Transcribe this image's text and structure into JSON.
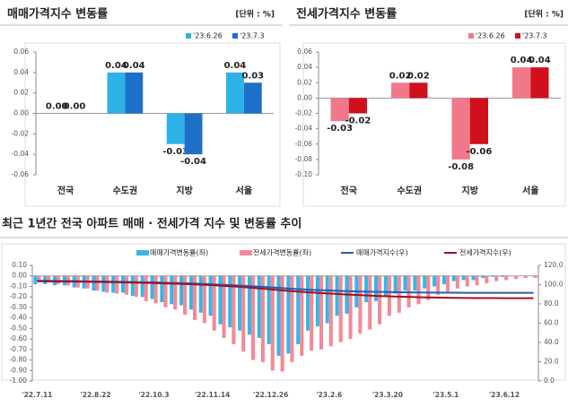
{
  "chart_data": [
    {
      "type": "bar",
      "title": "매매가격지수 변동률",
      "unit": "[단위 : %]",
      "categories": [
        "전국",
        "수도권",
        "지방",
        "서울"
      ],
      "series": [
        {
          "name": "'23.6.26",
          "color": "#2bb3e8",
          "values": [
            0,
            0.04,
            -0.03,
            0.04
          ],
          "value_labels": [
            "0.00",
            "0.04",
            "-0.03",
            "0.04"
          ]
        },
        {
          "name": "'23.7.3",
          "color": "#1e6fc8",
          "values": [
            0,
            0.04,
            -0.04,
            0.03
          ],
          "value_labels": [
            "0.00",
            "0.04",
            "-0.04",
            "0.03"
          ]
        }
      ],
      "ylim": [
        -0.06,
        0.06
      ],
      "yticks": [
        0.06,
        0.04,
        0.02,
        {
          "value": 0,
          "label": "0.00"
        },
        -0.02,
        -0.04,
        -0.06
      ]
    },
    {
      "type": "bar",
      "title": "전세가격지수 변동률",
      "unit": "[단위 : %]",
      "categories": [
        "전국",
        "수도권",
        "지방",
        "서울"
      ],
      "series": [
        {
          "name": "'23.6.26",
          "color": "#f0788a",
          "values": [
            -0.03,
            0.02,
            -0.08,
            0.04
          ]
        },
        {
          "name": "'23.7.3",
          "color": "#d0101c",
          "values": [
            -0.02,
            0.02,
            -0.06,
            0.04
          ]
        }
      ],
      "ylim": [
        -0.1,
        0.06
      ],
      "yticks": [
        0.06,
        0.04,
        0.02,
        {
          "value": 0,
          "label": "0.00"
        },
        -0.02,
        -0.04,
        -0.06,
        -0.08,
        {
          "value": -0.1,
          "label": "-0.10"
        }
      ]
    },
    {
      "type": "bar-line",
      "title": "최근 1년간 전국 아파트 매매 · 전세가격 지수 및 변동률 추이",
      "categories": [
        "'22.7.11",
        null,
        null,
        null,
        null,
        null,
        "'22.8.22",
        null,
        null,
        null,
        null,
        null,
        "'22.10.3",
        null,
        null,
        null,
        null,
        null,
        "'22.11.14",
        null,
        null,
        null,
        null,
        null,
        "'22.12.26",
        null,
        null,
        null,
        null,
        null,
        "'23.2.6",
        null,
        null,
        null,
        null,
        null,
        "'23.3.20",
        null,
        null,
        null,
        null,
        null,
        "'23.5.1",
        null,
        null,
        null,
        null,
        null,
        "'23.6.12",
        null,
        null,
        null
      ],
      "series": [
        {
          "name": "매매가격변동률(좌)",
          "type": "bar",
          "color": "#3ab4e6",
          "values": [
            -0.08,
            -0.08,
            -0.09,
            -0.09,
            -0.11,
            -0.12,
            -0.14,
            -0.15,
            -0.16,
            -0.16,
            -0.19,
            -0.2,
            -0.22,
            -0.25,
            -0.27,
            -0.28,
            -0.32,
            -0.35,
            -0.38,
            -0.46,
            -0.49,
            -0.52,
            -0.56,
            -0.59,
            -0.65,
            -0.76,
            -0.74,
            -0.65,
            -0.52,
            -0.48,
            -0.45,
            -0.38,
            -0.36,
            -0.3,
            -0.25,
            -0.24,
            -0.2,
            -0.17,
            -0.14,
            -0.14,
            -0.12,
            -0.1,
            -0.08,
            -0.05,
            -0.04,
            -0.04,
            -0.02,
            -0.01,
            -0.01,
            0,
            0,
            0
          ]
        },
        {
          "name": "전세가격변동률(좌)",
          "type": "bar",
          "color": "#f28a98",
          "values": [
            -0.05,
            -0.06,
            -0.08,
            -0.09,
            -0.11,
            -0.12,
            -0.14,
            -0.16,
            -0.17,
            -0.18,
            -0.2,
            -0.24,
            -0.26,
            -0.3,
            -0.32,
            -0.37,
            -0.42,
            -0.45,
            -0.52,
            -0.59,
            -0.65,
            -0.72,
            -0.8,
            -0.82,
            -0.9,
            -0.91,
            -0.82,
            -0.76,
            -0.71,
            -0.7,
            -0.67,
            -0.63,
            -0.6,
            -0.55,
            -0.51,
            -0.46,
            -0.38,
            -0.35,
            -0.3,
            -0.27,
            -0.23,
            -0.18,
            -0.15,
            -0.12,
            -0.1,
            -0.09,
            -0.07,
            -0.05,
            -0.04,
            -0.03,
            -0.02,
            -0.02
          ]
        },
        {
          "name": "매매가격지수(우)",
          "type": "line",
          "axis": "y2",
          "color": "#1f5fb5",
          "values": [
            104,
            103.9,
            103.8,
            103.7,
            103.6,
            103.5,
            103.3,
            103.2,
            103,
            102.9,
            102.7,
            102.5,
            102.3,
            102,
            101.8,
            101.5,
            101.2,
            100.8,
            100.4,
            99.9,
            99.4,
            98.9,
            98.4,
            97.8,
            97.2,
            96.5,
            95.8,
            95.2,
            94.7,
            94.3,
            93.9,
            93.5,
            93.2,
            92.9,
            92.7,
            92.5,
            92.3,
            92.1,
            92,
            91.9,
            91.8,
            91.7,
            91.6,
            91.6,
            91.5,
            91.5,
            91.5,
            91.5,
            91.5,
            91.5,
            91.5,
            91.5
          ]
        },
        {
          "name": "전세가격지수(우)",
          "type": "line",
          "axis": "y2",
          "color": "#a01020",
          "values": [
            103.5,
            103.4,
            103.3,
            103.2,
            103.1,
            103,
            102.8,
            102.7,
            102.5,
            102.3,
            102.1,
            101.9,
            101.6,
            101.3,
            101,
            100.7,
            100.3,
            99.9,
            99.4,
            98.8,
            98.2,
            97.5,
            96.7,
            95.9,
            95.1,
            94.2,
            93.4,
            92.7,
            92,
            91.4,
            90.8,
            90.2,
            89.7,
            89.2,
            88.7,
            88.3,
            87.9,
            87.6,
            87.3,
            87,
            86.8,
            86.6,
            86.4,
            86.3,
            86.2,
            86.1,
            86,
            86,
            85.9,
            85.9,
            85.9,
            85.9
          ]
        }
      ],
      "ylim": [
        -1,
        0.1
      ],
      "yticks": [
        {
          "value": 0.1,
          "label": "0.10"
        },
        {
          "value": 0,
          "label": "0.00"
        },
        {
          "value": -0.1,
          "label": "-0.10"
        },
        {
          "value": -0.2,
          "label": "-0.20"
        },
        {
          "value": -0.3,
          "label": "-0.30"
        },
        {
          "value": -0.4,
          "label": "-0.40"
        },
        {
          "value": -0.5,
          "label": "-0.50"
        },
        {
          "value": -0.6,
          "label": "-0.60"
        },
        {
          "value": -0.7,
          "label": "-0.70"
        },
        {
          "value": -0.8,
          "label": "-0.80"
        },
        {
          "value": -0.9,
          "label": "-0.90"
        },
        {
          "value": -1,
          "label": "-1.00"
        }
      ],
      "y2lim": [
        0,
        120
      ],
      "y2ticks": [
        {
          "value": 120,
          "label": "120.0"
        },
        {
          "value": 100,
          "label": "100.0"
        },
        {
          "value": 80,
          "label": "80.0"
        },
        {
          "value": 60,
          "label": "60.0"
        },
        {
          "value": 40,
          "label": "40.0"
        },
        {
          "value": 20,
          "label": "20.0"
        },
        {
          "value": 0,
          "label": "0.0"
        }
      ]
    }
  ]
}
